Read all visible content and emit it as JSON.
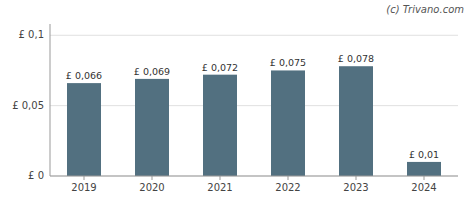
{
  "chart_data": {
    "type": "bar",
    "annotation": "(c) Trivano.com",
    "categories": [
      "2019",
      "2020",
      "2021",
      "2022",
      "2023",
      "2024"
    ],
    "values": [
      0.066,
      0.069,
      0.072,
      0.075,
      0.078,
      0.01
    ],
    "value_labels": [
      "£ 0,066",
      "£ 0,069",
      "£ 0,072",
      "£ 0,075",
      "£ 0,078",
      "£ 0,01"
    ],
    "color": "#527080",
    "ylim": [
      0,
      0.108
    ],
    "yticks": [
      {
        "value": 0,
        "label": "£ 0"
      },
      {
        "value": 0.05,
        "label": "£ 0,05"
      },
      {
        "value": 0.1,
        "label": "£ 0,1"
      }
    ],
    "grid": true,
    "data_labels": true
  }
}
